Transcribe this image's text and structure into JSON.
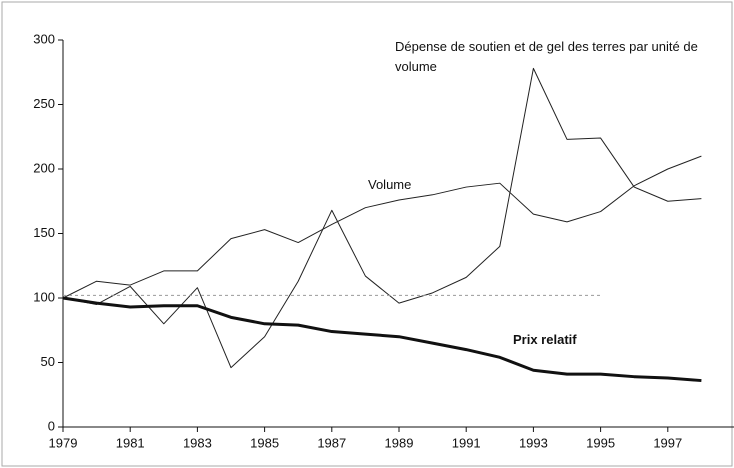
{
  "chart_data": {
    "type": "line",
    "x": [
      1979,
      1980,
      1981,
      1982,
      1983,
      1984,
      1985,
      1986,
      1987,
      1988,
      1989,
      1990,
      1991,
      1992,
      1993,
      1994,
      1995,
      1996,
      1997,
      1998
    ],
    "series": [
      {
        "name": "Volume",
        "color": "#222222",
        "width": 1,
        "values": [
          100,
          113,
          110,
          121,
          121,
          146,
          153,
          143,
          157,
          170,
          176,
          180,
          186,
          189,
          165,
          159,
          167,
          187,
          200,
          210
        ]
      },
      {
        "name": "Dépense de soutien et de gel des terres par unité de volume",
        "color": "#222222",
        "width": 1,
        "values": [
          100,
          95,
          109,
          80,
          108,
          46,
          70,
          113,
          168,
          117,
          96,
          104,
          116,
          140,
          278,
          223,
          224,
          186,
          175,
          177
        ]
      },
      {
        "name": "Prix relatif",
        "color": "#111111",
        "width": 3,
        "values": [
          100,
          96,
          93,
          94,
          94,
          85,
          80,
          79,
          74,
          72,
          70,
          65,
          60,
          54,
          44,
          41,
          41,
          39,
          38,
          36
        ]
      },
      {
        "color": "#999999",
        "width": 1,
        "dashed": true,
        "values": [
          102,
          102,
          102,
          102,
          102,
          102,
          102,
          102,
          102,
          102,
          102,
          102,
          102,
          102,
          102,
          102,
          102,
          null,
          null,
          null
        ]
      }
    ],
    "xlim": [
      1979,
      1999
    ],
    "xticks": [
      1979,
      1981,
      1983,
      1985,
      1987,
      1989,
      1991,
      1993,
      1995,
      1997
    ],
    "ylim": [
      0,
      300
    ],
    "yticks": [
      0,
      50,
      100,
      150,
      200,
      250,
      300
    ],
    "grid": false
  }
}
